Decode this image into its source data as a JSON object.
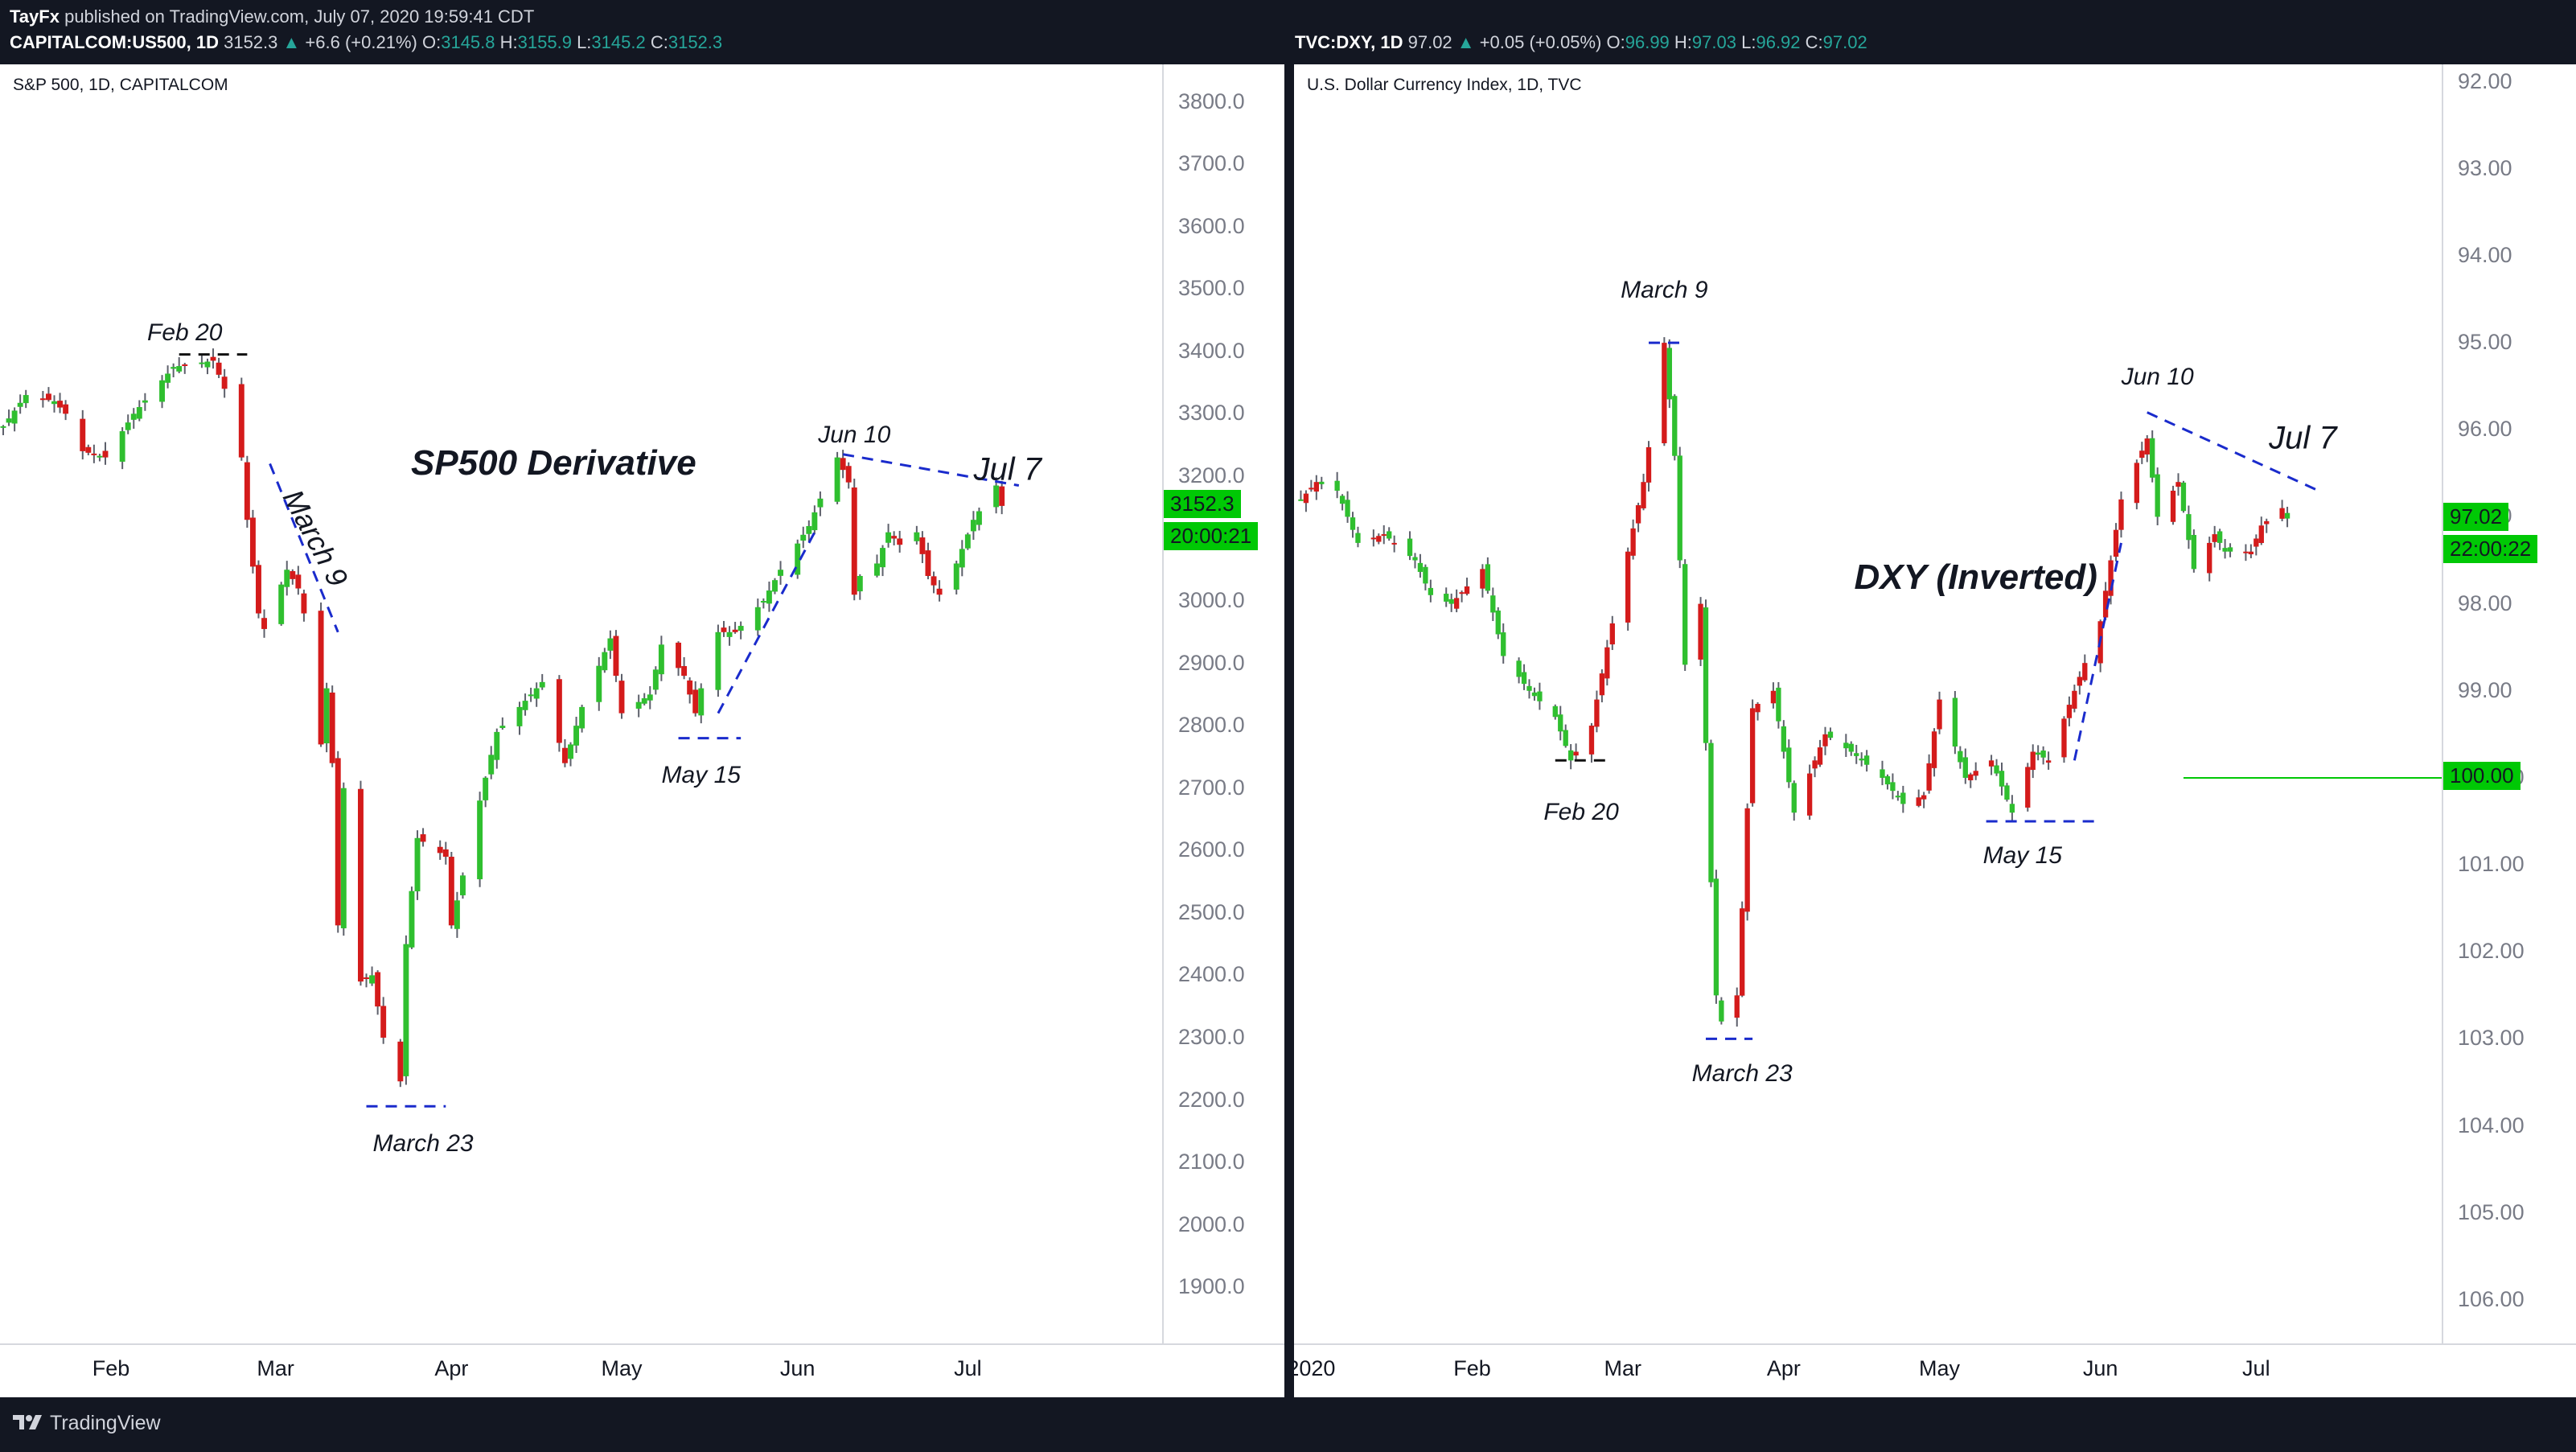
{
  "header": {
    "publisher_name": "TayFx",
    "publisher_text": "published on TradingView.com, July 07, 2020 19:59:41 CDT",
    "left_quote": {
      "symbol": "CAPITALCOM:US500, 1D",
      "last": "3152.3",
      "arrow": "▲",
      "change": "+6.6 (+0.21%)",
      "o_label": "O:",
      "o": "3145.8",
      "h_label": "H:",
      "h": "3155.9",
      "l_label": "L:",
      "l": "3145.2",
      "c_label": "C:",
      "c": "3152.3"
    },
    "right_quote": {
      "symbol": "TVC:DXY, 1D",
      "last": "97.02",
      "arrow": "▲",
      "change": "+0.05 (+0.05%)",
      "o_label": "O:",
      "o": "96.99",
      "h_label": "H:",
      "h": "97.03",
      "l_label": "L:",
      "l": "96.92",
      "c_label": "C:",
      "c": "97.02"
    }
  },
  "footer": {
    "brand": "TradingView",
    "icon": "tradingview-logo-icon"
  },
  "colors": {
    "up": "#2fbf2f",
    "down": "#d41b1b",
    "badge": "#00c805",
    "annotation_line": "#1a2bcc",
    "background": "#131722"
  },
  "chart_data": [
    {
      "type": "candlestick",
      "title": "S&P 500, 1D, CAPITALCOM",
      "ylim": [
        1810,
        3860
      ],
      "yticks": [
        3800,
        3700,
        3600,
        3500,
        3400,
        3300,
        3200,
        3100,
        3000,
        2900,
        2800,
        2700,
        2600,
        2500,
        2400,
        2300,
        2200,
        2100,
        2000,
        1900
      ],
      "ytick_labels": [
        "3800.0",
        "3700.0",
        "3600.0",
        "3500.0",
        "3400.0",
        "3300.0",
        "3200.0",
        "3100.0",
        "3000.0",
        "2900.0",
        "2800.0",
        "2700.0",
        "2600.0",
        "2500.0",
        "2400.0",
        "2300.0",
        "2200.0",
        "2100.0",
        "2000.0",
        "1900.0"
      ],
      "x_dates": [
        "2020-01-13",
        "2020-07-31"
      ],
      "xticks": [
        {
          "date": "2020-02-01",
          "label": "Feb"
        },
        {
          "date": "2020-03-01",
          "label": "Mar"
        },
        {
          "date": "2020-04-01",
          "label": "Apr"
        },
        {
          "date": "2020-05-01",
          "label": "May"
        },
        {
          "date": "2020-06-01",
          "label": "Jun"
        },
        {
          "date": "2020-07-01",
          "label": "Jul"
        }
      ],
      "anchors": [
        [
          "2020-01-13",
          3280
        ],
        [
          "2020-01-17",
          3330
        ],
        [
          "2020-01-22",
          3320
        ],
        [
          "2020-01-24",
          3300
        ],
        [
          "2020-01-27",
          3240
        ],
        [
          "2020-01-31",
          3230
        ],
        [
          "2020-02-05",
          3300
        ],
        [
          "2020-02-12",
          3375
        ],
        [
          "2020-02-19",
          3385
        ],
        [
          "2020-02-21",
          3340
        ],
        [
          "2020-02-24",
          3230
        ],
        [
          "2020-02-25",
          3130
        ],
        [
          "2020-02-27",
          2980
        ],
        [
          "2020-02-28",
          2955
        ],
        [
          "2020-03-03",
          3050
        ],
        [
          "2020-03-05",
          3020
        ],
        [
          "2020-03-06",
          2980
        ],
        [
          "2020-03-09",
          2770
        ],
        [
          "2020-03-10",
          2860
        ],
        [
          "2020-03-11",
          2740
        ],
        [
          "2020-03-12",
          2480
        ],
        [
          "2020-03-13",
          2700
        ],
        [
          "2020-03-16",
          2390
        ],
        [
          "2020-03-18",
          2400
        ],
        [
          "2020-03-20",
          2300
        ],
        [
          "2020-03-23",
          2230
        ],
        [
          "2020-03-24",
          2450
        ],
        [
          "2020-03-26",
          2620
        ],
        [
          "2020-03-31",
          2590
        ],
        [
          "2020-04-01",
          2480
        ],
        [
          "2020-04-06",
          2680
        ],
        [
          "2020-04-09",
          2790
        ],
        [
          "2020-04-14",
          2840
        ],
        [
          "2020-04-17",
          2870
        ],
        [
          "2020-04-21",
          2740
        ],
        [
          "2020-04-24",
          2830
        ],
        [
          "2020-04-29",
          2940
        ],
        [
          "2020-05-01",
          2820
        ],
        [
          "2020-05-06",
          2850
        ],
        [
          "2020-05-08",
          2930
        ],
        [
          "2020-05-12",
          2880
        ],
        [
          "2020-05-14",
          2820
        ],
        [
          "2020-05-15",
          2860
        ],
        [
          "2020-05-18",
          2950
        ],
        [
          "2020-05-21",
          2950
        ],
        [
          "2020-05-26",
          3000
        ],
        [
          "2020-05-29",
          3050
        ],
        [
          "2020-06-03",
          3120
        ],
        [
          "2020-06-08",
          3230
        ],
        [
          "2020-06-10",
          3190
        ],
        [
          "2020-06-11",
          3010
        ],
        [
          "2020-06-12",
          3040
        ],
        [
          "2020-06-15",
          3060
        ],
        [
          "2020-06-17",
          3110
        ],
        [
          "2020-06-19",
          3090
        ],
        [
          "2020-06-22",
          3110
        ],
        [
          "2020-06-24",
          3040
        ],
        [
          "2020-06-26",
          3010
        ],
        [
          "2020-06-29",
          3060
        ],
        [
          "2020-07-02",
          3130
        ],
        [
          "2020-07-06",
          3185
        ],
        [
          "2020-07-07",
          3152.3
        ]
      ],
      "last_price_badge": "3152.3",
      "countdown_badge": "20:00:21",
      "annotations": [
        {
          "text": "SP500 Derivative",
          "date": "2020-04-19",
          "value": 3220,
          "style": "big"
        },
        {
          "text": "Feb 20",
          "date": "2020-02-14",
          "value": 3430,
          "style": "small"
        },
        {
          "text": "March 9",
          "date": "2020-03-08",
          "value": 3100,
          "style": "rotated"
        },
        {
          "text": "March 23",
          "date": "2020-03-27",
          "value": 2130,
          "style": "small"
        },
        {
          "text": "May 15",
          "date": "2020-05-15",
          "value": 2720,
          "style": "small"
        },
        {
          "text": "Jun 10",
          "date": "2020-06-11",
          "value": 3265,
          "style": "small"
        },
        {
          "text": "Jul 7",
          "date": "2020-07-08",
          "value": 3210,
          "style": "mid"
        }
      ]
    },
    {
      "type": "candlestick",
      "title": "U.S. Dollar Currency Index, 1D, TVC",
      "inverted": true,
      "ylim": [
        91.8,
        106.5
      ],
      "yticks": [
        92,
        93,
        94,
        95,
        96,
        97,
        98,
        99,
        100,
        101,
        102,
        103,
        104,
        105,
        106
      ],
      "ytick_labels": [
        "92.00",
        "93.00",
        "94.00",
        "95.00",
        "96.00",
        "97.00",
        "98.00",
        "99.00",
        "100.00",
        "101.00",
        "102.00",
        "103.00",
        "104.00",
        "105.00",
        "106.00"
      ],
      "x_dates": [
        "2019-12-29",
        "2020-07-31"
      ],
      "xticks": [
        {
          "date": "2020-01-01",
          "label": "2020"
        },
        {
          "date": "2020-02-01",
          "label": "Feb"
        },
        {
          "date": "2020-03-01",
          "label": "Mar"
        },
        {
          "date": "2020-04-01",
          "label": "Apr"
        },
        {
          "date": "2020-05-01",
          "label": "May"
        },
        {
          "date": "2020-06-01",
          "label": "Jun"
        },
        {
          "date": "2020-07-01",
          "label": "Jul"
        }
      ],
      "anchors": [
        [
          "2019-12-30",
          96.8
        ],
        [
          "2020-01-02",
          96.6
        ],
        [
          "2020-01-06",
          96.7
        ],
        [
          "2020-01-10",
          97.3
        ],
        [
          "2020-01-15",
          97.2
        ],
        [
          "2020-01-21",
          97.5
        ],
        [
          "2020-01-24",
          97.9
        ],
        [
          "2020-01-28",
          98.0
        ],
        [
          "2020-02-03",
          97.6
        ],
        [
          "2020-02-07",
          98.6
        ],
        [
          "2020-02-12",
          99.0
        ],
        [
          "2020-02-17",
          99.3
        ],
        [
          "2020-02-20",
          99.8
        ],
        [
          "2020-02-24",
          99.4
        ],
        [
          "2020-02-27",
          98.5
        ],
        [
          "2020-03-02",
          97.4
        ],
        [
          "2020-03-05",
          96.6
        ],
        [
          "2020-03-09",
          95.0
        ],
        [
          "2020-03-11",
          96.3
        ],
        [
          "2020-03-13",
          98.7
        ],
        [
          "2020-03-16",
          98.0
        ],
        [
          "2020-03-18",
          101.2
        ],
        [
          "2020-03-19",
          102.5
        ],
        [
          "2020-03-20",
          102.8
        ],
        [
          "2020-03-23",
          102.5
        ],
        [
          "2020-03-24",
          101.5
        ],
        [
          "2020-03-26",
          99.2
        ],
        [
          "2020-03-30",
          99.0
        ],
        [
          "2020-04-03",
          100.4
        ],
        [
          "2020-04-09",
          99.5
        ],
        [
          "2020-04-14",
          99.7
        ],
        [
          "2020-04-20",
          100.0
        ],
        [
          "2020-04-24",
          100.3
        ],
        [
          "2020-04-28",
          100.2
        ],
        [
          "2020-05-01",
          99.1
        ],
        [
          "2020-05-06",
          100.0
        ],
        [
          "2020-05-11",
          99.8
        ],
        [
          "2020-05-15",
          100.4
        ],
        [
          "2020-05-19",
          99.7
        ],
        [
          "2020-05-22",
          99.8
        ],
        [
          "2020-05-27",
          99.0
        ],
        [
          "2020-06-01",
          98.2
        ],
        [
          "2020-06-05",
          96.8
        ],
        [
          "2020-06-10",
          96.1
        ],
        [
          "2020-06-12",
          97.0
        ],
        [
          "2020-06-16",
          96.6
        ],
        [
          "2020-06-19",
          97.6
        ],
        [
          "2020-06-23",
          97.2
        ],
        [
          "2020-06-25",
          97.4
        ],
        [
          "2020-06-30",
          97.4
        ],
        [
          "2020-07-02",
          97.1
        ],
        [
          "2020-07-06",
          96.9
        ],
        [
          "2020-07-07",
          97.02
        ]
      ],
      "last_price_badge": "97.02",
      "countdown_badge": "22:00:22",
      "level_badge": "100.00",
      "annotations": [
        {
          "text": "DXY (Inverted)",
          "date": "2020-05-08",
          "value": 97.7,
          "style": "big"
        },
        {
          "text": "March 9",
          "date": "2020-03-09",
          "value": 94.4,
          "style": "small"
        },
        {
          "text": "Feb 20",
          "date": "2020-02-22",
          "value": 100.4,
          "style": "small"
        },
        {
          "text": "March 23",
          "date": "2020-03-24",
          "value": 103.4,
          "style": "small"
        },
        {
          "text": "May 15",
          "date": "2020-05-17",
          "value": 100.9,
          "style": "small"
        },
        {
          "text": "Jun 10",
          "date": "2020-06-12",
          "value": 95.4,
          "style": "small"
        },
        {
          "text": "Jul 7",
          "date": "2020-07-10",
          "value": 96.1,
          "style": "mid"
        }
      ]
    }
  ]
}
